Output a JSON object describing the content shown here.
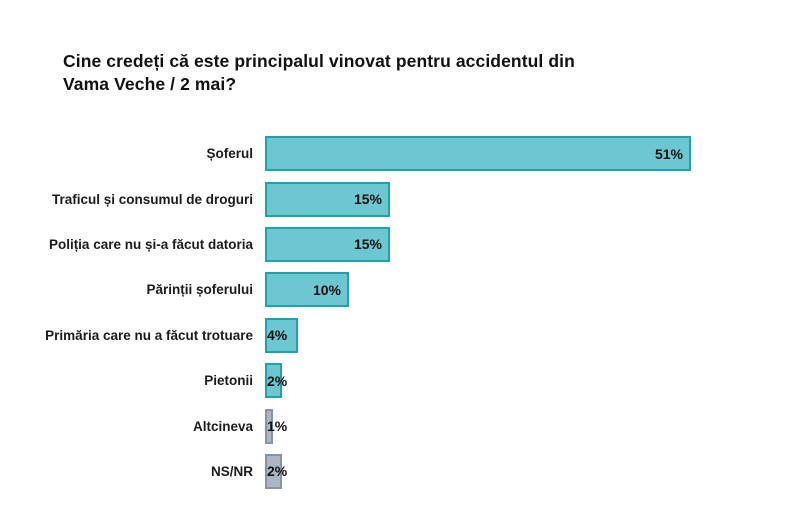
{
  "page": {
    "background": "#ffffff"
  },
  "chart_data": {
    "type": "bar",
    "orientation": "horizontal",
    "title_lines": [
      "Cine credeți că este principalul vinovat pentru accidentul din",
      "Vama Veche / 2 mai?"
    ],
    "categories": [
      "Șoferul",
      "Traficul și consumul de droguri",
      "Poliția care nu și-a făcut datoria",
      "Părinții șoferului",
      "Primăria care nu a făcut trotuare",
      "Pietonii",
      "Altcineva",
      "NS/NR"
    ],
    "values": [
      51,
      15,
      15,
      10,
      4,
      2,
      1,
      2
    ],
    "value_labels": [
      "51%",
      "15%",
      "15%",
      "10%",
      "4%",
      "2%",
      "1%",
      "2%"
    ],
    "items": [
      {
        "label": "Șoferul",
        "value": 51,
        "value_label": "51%",
        "color": "teal"
      },
      {
        "label": "Traficul și consumul de droguri",
        "value": 15,
        "value_label": "15%",
        "color": "teal"
      },
      {
        "label": "Poliția care nu și-a făcut datoria",
        "value": 15,
        "value_label": "15%",
        "color": "teal"
      },
      {
        "label": "Părinții șoferului",
        "value": 10,
        "value_label": "10%",
        "color": "teal"
      },
      {
        "label": "Primăria care nu a făcut trotuare",
        "value": 4,
        "value_label": "4%",
        "color": "teal"
      },
      {
        "label": "Pietonii",
        "value": 2,
        "value_label": "2%",
        "color": "teal"
      },
      {
        "label": "Altcineva",
        "value": 1,
        "value_label": "1%",
        "color": "gray"
      },
      {
        "label": "NS/NR",
        "value": 2,
        "value_label": "2%",
        "color": "gray"
      }
    ],
    "unit": "%",
    "xlim": [
      0,
      51
    ],
    "grid": false,
    "legend": "none",
    "axes_shown": false,
    "colors": {
      "teal_fill": "#6cc7d1",
      "teal_border": "#1ba3b2",
      "gray_fill": "#abb7c3",
      "gray_border": "#8494a4",
      "text": "#111111",
      "background": "#ffffff"
    }
  }
}
